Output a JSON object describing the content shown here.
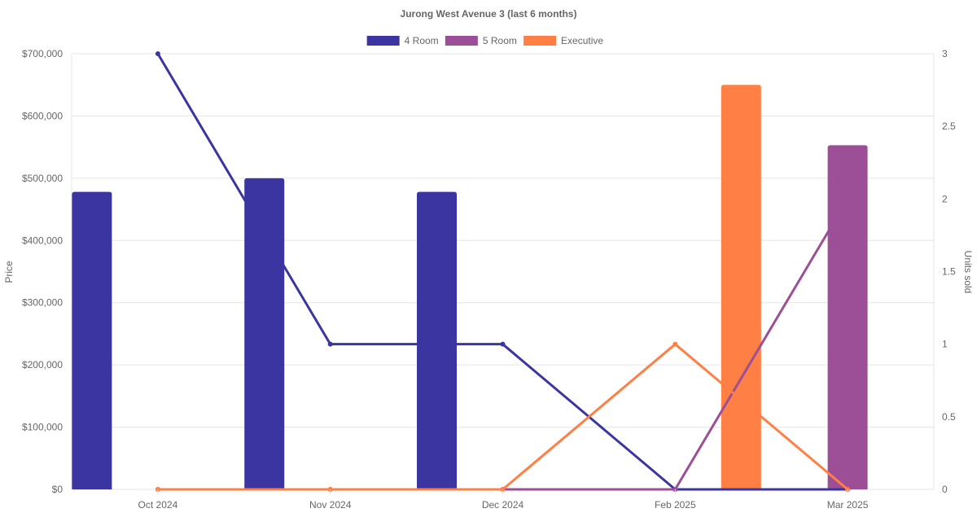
{
  "chart_data": {
    "type": "bar",
    "title": "Jurong West Avenue 3 (last 6 months)",
    "categories": [
      "Oct 2024",
      "Nov 2024",
      "Dec 2024",
      "Feb 2025",
      "Mar 2025"
    ],
    "y_left": {
      "label": "Price",
      "range": [
        0,
        700000
      ],
      "ticks": [
        "$0",
        "$100,000",
        "$200,000",
        "$300,000",
        "$400,000",
        "$500,000",
        "$600,000",
        "$700,000"
      ]
    },
    "y_right": {
      "label": "Units sold",
      "range": [
        0,
        3
      ],
      "ticks": [
        "0",
        "0.5",
        "1",
        "1.5",
        "2",
        "2.5",
        "3"
      ]
    },
    "series": [
      {
        "name": "4 Room",
        "color": "#3a35a0",
        "price": [
          478000,
          500000,
          478000,
          null,
          null
        ],
        "units": [
          3,
          1,
          1,
          0,
          0
        ]
      },
      {
        "name": "5 Room",
        "color": "#9c4f96",
        "price": [
          null,
          null,
          null,
          null,
          553000
        ],
        "units": [
          0,
          0,
          0,
          0,
          2
        ]
      },
      {
        "name": "Executive",
        "color": "#ff7f45",
        "price": [
          null,
          null,
          null,
          650000,
          null
        ],
        "units": [
          0,
          0,
          0,
          1,
          0
        ]
      }
    ],
    "grid": true,
    "legend_position": "top-center"
  }
}
